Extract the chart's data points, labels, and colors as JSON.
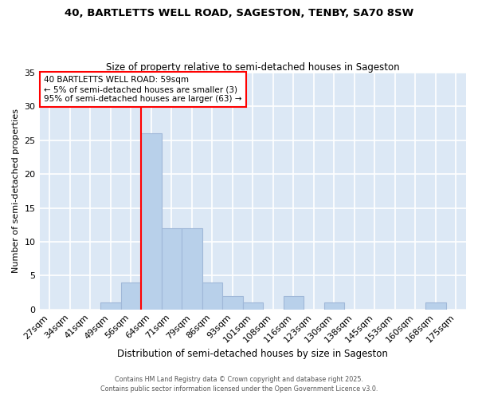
{
  "title1": "40, BARTLETTS WELL ROAD, SAGESTON, TENBY, SA70 8SW",
  "title2": "Size of property relative to semi-detached houses in Sageston",
  "xlabel": "Distribution of semi-detached houses by size in Sageston",
  "ylabel": "Number of semi-detached properties",
  "bar_color": "#b8d0ea",
  "bar_edgecolor": "#a0b8d8",
  "bg_color": "#dce8f5",
  "grid_color": "#ffffff",
  "annotation_title": "40 BARTLETTS WELL ROAD: 59sqm",
  "annotation_line1": "← 5% of semi-detached houses are smaller (3)",
  "annotation_line2": "95% of semi-detached houses are larger (63) →",
  "categories": [
    "27sqm",
    "34sqm",
    "41sqm",
    "49sqm",
    "56sqm",
    "64sqm",
    "71sqm",
    "79sqm",
    "86sqm",
    "93sqm",
    "101sqm",
    "108sqm",
    "116sqm",
    "123sqm",
    "130sqm",
    "138sqm",
    "145sqm",
    "153sqm",
    "160sqm",
    "168sqm",
    "175sqm"
  ],
  "values": [
    0,
    0,
    0,
    1,
    4,
    26,
    12,
    12,
    4,
    2,
    1,
    0,
    2,
    0,
    1,
    0,
    0,
    0,
    0,
    1,
    0
  ],
  "ylim": [
    0,
    35
  ],
  "yticks": [
    0,
    5,
    10,
    15,
    20,
    25,
    30,
    35
  ],
  "redline_bin": 5,
  "footnote1": "Contains HM Land Registry data © Crown copyright and database right 2025.",
  "footnote2": "Contains public sector information licensed under the Open Government Licence v3.0."
}
